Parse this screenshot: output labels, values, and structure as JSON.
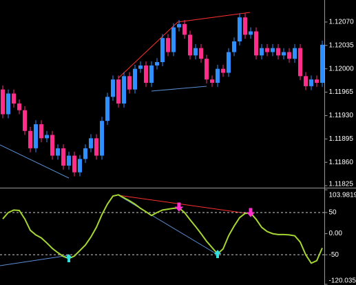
{
  "chart_data": [
    {
      "type": "candlestick",
      "up_color": "#2f8fff",
      "down_color": "#ff2d8c",
      "ylim": [
        1.11822,
        1.12103
      ],
      "yticks": [
        {
          "value": 1.1207,
          "label": "1.12070"
        },
        1.12035,
        {
          "value": 1.12,
          "label": "1.12000"
        },
        1.11965,
        {
          "value": 1.1193,
          "label": "1.11930"
        },
        1.11895,
        {
          "value": 1.1186,
          "label": "1.11860"
        },
        1.11825
      ],
      "open": [
        1.11969,
        1.11932,
        1.11963,
        1.11948,
        1.11938,
        1.11907,
        1.11881,
        1.11917,
        1.11896,
        1.11901,
        1.1187,
        1.11881,
        1.11855,
        1.1187,
        1.11845,
        1.11865,
        1.11881,
        1.11896,
        1.1187,
        1.11922,
        1.11958,
        1.11984,
        1.11948,
        1.11989,
        1.11969,
        1.12,
        1.12005,
        1.11979,
        1.12005,
        1.1201,
        1.12046,
        1.12025,
        1.12062,
        1.12067,
        1.12051,
        1.1202,
        1.12031,
        1.12015,
        1.11984,
        1.11979,
        1.12,
        1.11994,
        1.12025,
        1.12041,
        1.12077,
        1.12051,
        1.12056,
        1.1202,
        1.12031,
        1.12025,
        1.12031,
        1.1202,
        1.12025,
        1.12015,
        1.12031,
        1.11989,
        1.11974,
        1.11984,
        1.11979
      ],
      "high": [
        1.11975,
        1.11969,
        1.11969,
        1.11954,
        1.11944,
        1.11913,
        1.11923,
        1.11923,
        1.11907,
        1.11907,
        1.11887,
        1.11887,
        1.11876,
        1.11876,
        1.11871,
        1.11887,
        1.11902,
        1.11902,
        1.11928,
        1.11964,
        1.1199,
        1.1199,
        1.11995,
        1.11995,
        1.12006,
        1.12011,
        1.12011,
        1.12011,
        1.12016,
        1.12052,
        1.12052,
        1.12068,
        1.12073,
        1.12073,
        1.12057,
        1.12037,
        1.12037,
        1.12021,
        1.1199,
        1.12006,
        1.12006,
        1.12031,
        1.12047,
        1.12083,
        1.12083,
        1.12062,
        1.12062,
        1.12037,
        1.12037,
        1.12037,
        1.12037,
        1.12031,
        1.12031,
        1.12037,
        1.12037,
        1.11995,
        1.1199,
        1.1199,
        1.12042
      ],
      "low": [
        1.11926,
        1.11926,
        1.11942,
        1.11932,
        1.11901,
        1.11875,
        1.11875,
        1.1189,
        1.1189,
        1.11864,
        1.11864,
        1.11849,
        1.11849,
        1.11839,
        1.11839,
        1.11859,
        1.11875,
        1.11864,
        1.11864,
        1.11916,
        1.11952,
        1.11942,
        1.11942,
        1.11963,
        1.11963,
        1.11994,
        1.11973,
        1.11973,
        1.11999,
        1.12004,
        1.12019,
        1.12019,
        1.12056,
        1.12045,
        1.12014,
        1.12014,
        1.12009,
        1.11978,
        1.11973,
        1.11973,
        1.11988,
        1.11988,
        1.12019,
        1.12035,
        1.12045,
        1.12045,
        1.12014,
        1.12014,
        1.12019,
        1.12019,
        1.12014,
        1.12014,
        1.12009,
        1.12009,
        1.11983,
        1.11968,
        1.11968,
        1.11973,
        1.11973
      ],
      "close": [
        1.11932,
        1.11963,
        1.11948,
        1.11938,
        1.11907,
        1.11881,
        1.11917,
        1.11896,
        1.11901,
        1.1187,
        1.11881,
        1.11855,
        1.1187,
        1.11845,
        1.11865,
        1.11881,
        1.11896,
        1.1187,
        1.11922,
        1.11958,
        1.11984,
        1.11948,
        1.11989,
        1.11969,
        1.12,
        1.12005,
        1.11979,
        1.12005,
        1.1201,
        1.12046,
        1.12025,
        1.12062,
        1.12067,
        1.12051,
        1.1202,
        1.12031,
        1.12015,
        1.11984,
        1.11979,
        1.12,
        1.11994,
        1.12025,
        1.12041,
        1.12077,
        1.12051,
        1.12056,
        1.1202,
        1.12031,
        1.12025,
        1.12031,
        1.1202,
        1.12025,
        1.12015,
        1.12031,
        1.11989,
        1.11974,
        1.11984,
        1.11979,
        1.12036
      ]
    },
    {
      "type": "line",
      "color": "#a6d632",
      "ylim": [
        -120.0352,
        103.98193
      ],
      "yticks": [
        103.98193,
        50,
        {
          "value": 0,
          "label": "0.00"
        },
        -50,
        -120.0352
      ],
      "levels": [
        50,
        -50
      ],
      "values": [
        35,
        50,
        56,
        55,
        35,
        8,
        -3,
        -10,
        -22,
        -35,
        -45,
        -54,
        -59,
        -53,
        -40,
        -27,
        -8,
        15,
        45,
        70,
        89,
        92,
        85,
        78,
        70,
        60,
        52,
        43,
        50,
        56,
        58,
        60,
        61,
        50,
        33,
        17,
        0,
        -18,
        -33,
        -48,
        -36,
        -5,
        18,
        38,
        48,
        49,
        34,
        15,
        5,
        0,
        -2,
        -2,
        -3,
        -5,
        -20,
        -50,
        -70,
        -64,
        -34
      ]
    }
  ]
}
